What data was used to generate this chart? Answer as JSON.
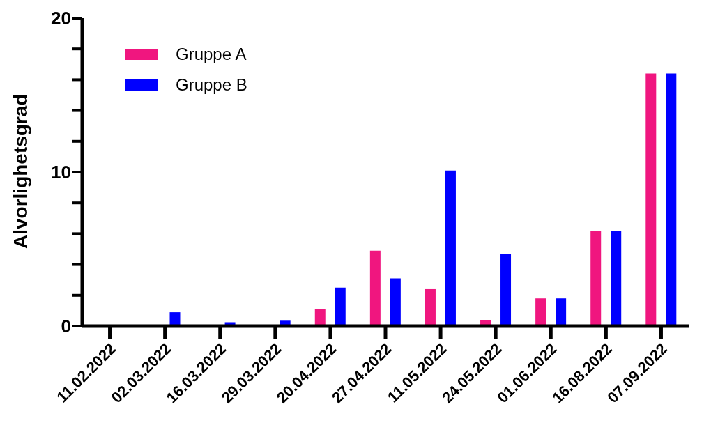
{
  "chart_data": {
    "type": "bar",
    "ylabel": "Alvorlighetsgrad",
    "categories": [
      "11.02.2022",
      "02.03.2022",
      "16.03.2022",
      "29.03.2022",
      "20.04.2022",
      "27.04.2022",
      "11.05.2022",
      "24.05.2022",
      "01.06.2022",
      "16.08.2022",
      "07.09.2022"
    ],
    "series": [
      {
        "name": "Gruppe A",
        "color": "#f0167f",
        "values": [
          null,
          null,
          null,
          null,
          1.1,
          4.9,
          2.4,
          0.4,
          1.8,
          6.2,
          16.4
        ]
      },
      {
        "name": "Gruppe B",
        "color": "#0000ff",
        "values": [
          null,
          0.9,
          0.25,
          0.35,
          2.5,
          3.1,
          10.1,
          4.7,
          1.8,
          6.2,
          16.4
        ]
      }
    ],
    "ylim": [
      0,
      20
    ],
    "yticks": [
      0,
      {
        "value": 2,
        "label": null
      },
      {
        "value": 4,
        "label": null
      },
      {
        "value": 6,
        "label": null
      },
      {
        "value": 8,
        "label": null
      },
      10,
      {
        "value": 12,
        "label": null
      },
      {
        "value": 14,
        "label": null
      },
      {
        "value": 16,
        "label": null
      },
      {
        "value": 18,
        "label": null
      },
      20
    ],
    "grid": false,
    "legend": "top left"
  }
}
